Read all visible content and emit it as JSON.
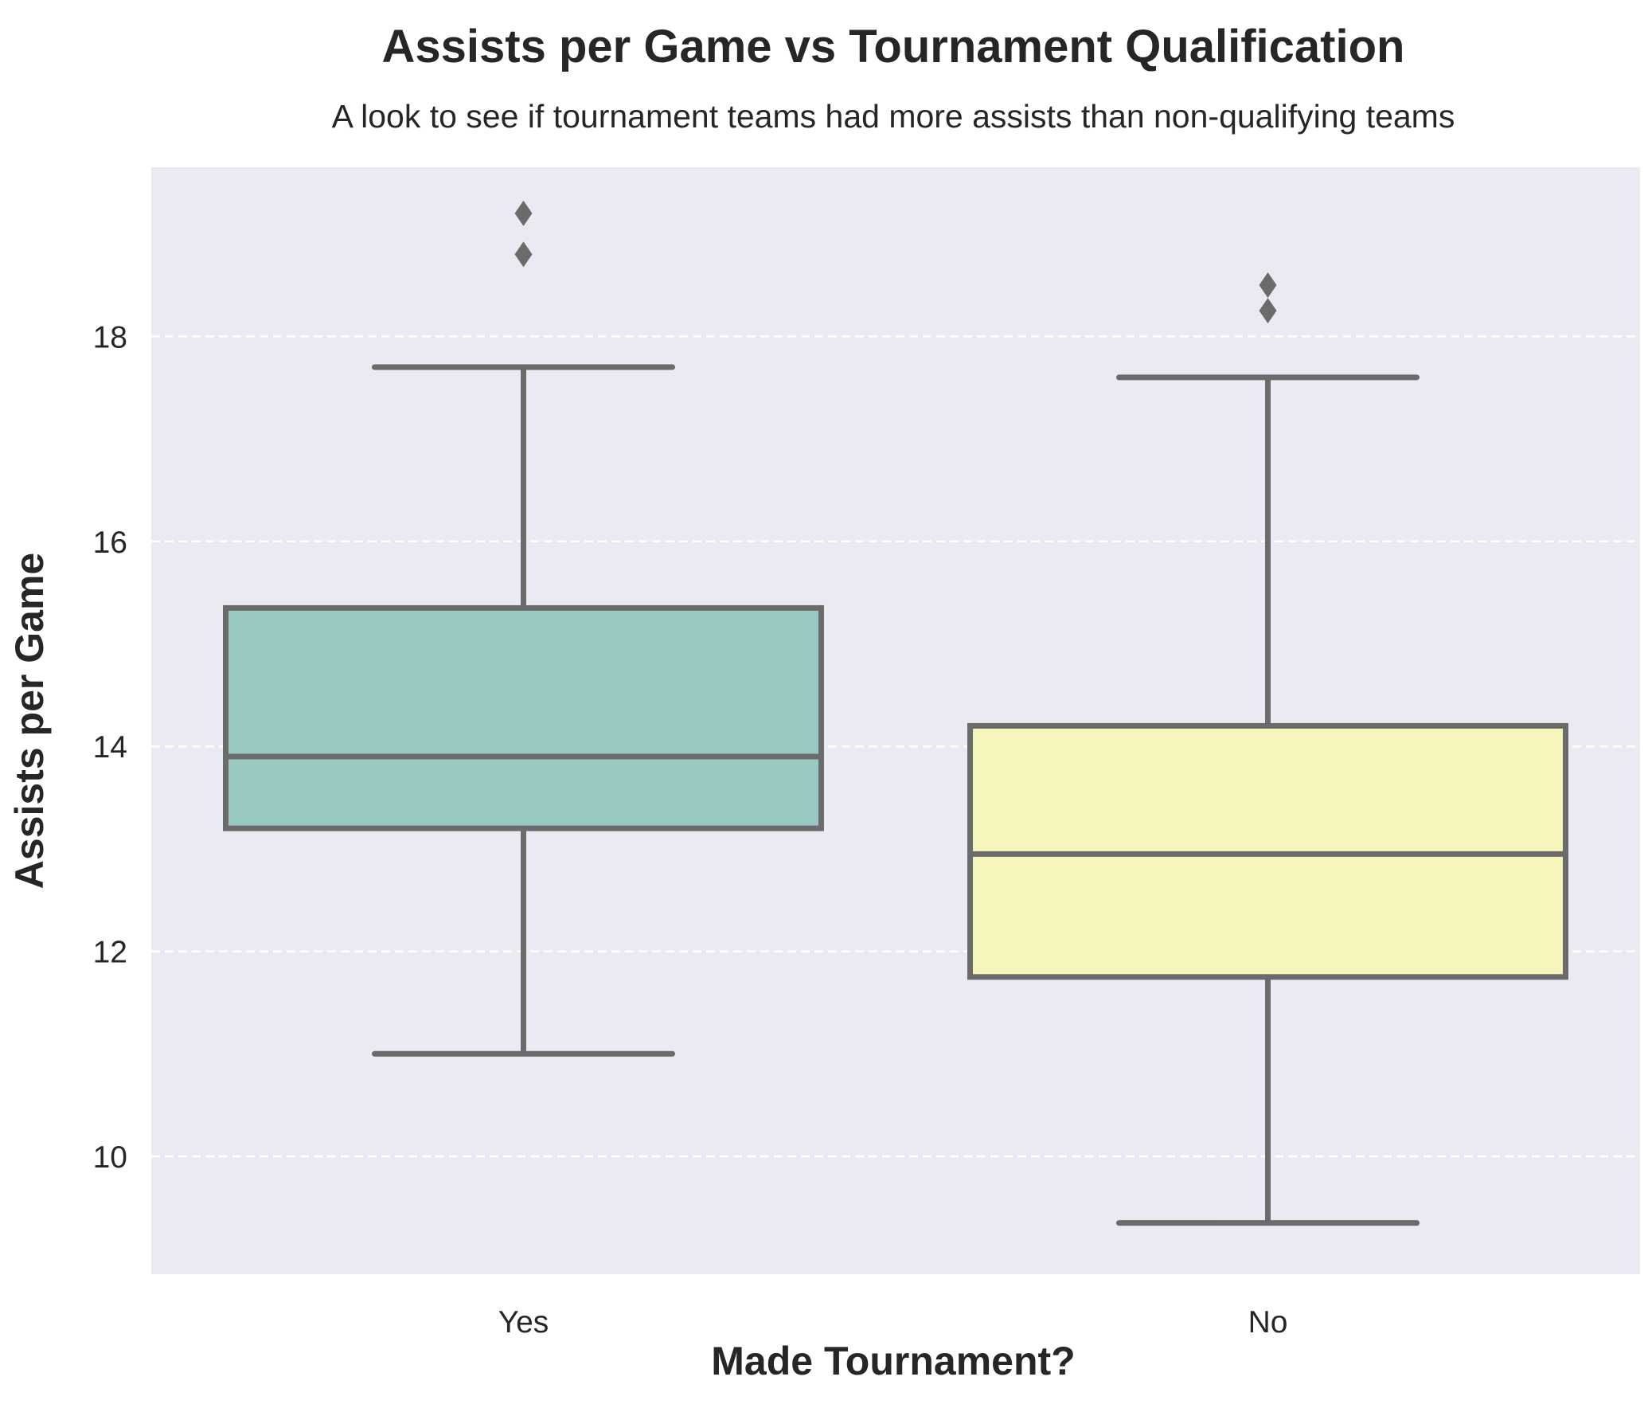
{
  "chart_data": {
    "type": "box",
    "title": "Assists per Game vs Tournament Qualification",
    "subtitle": "A look to see if tournament teams had more assists than non-qualifying teams",
    "xlabel": "Made Tournament?",
    "ylabel": "Assists per Game",
    "categories": [
      "Yes",
      "No"
    ],
    "ylim": [
      8.85,
      19.65
    ],
    "yticks": [
      10,
      12,
      14,
      16,
      18
    ],
    "grid": "y-dashed",
    "boxes": [
      {
        "category": "Yes",
        "whisker_low": 11.0,
        "q1": 13.2,
        "median": 13.9,
        "q3": 15.35,
        "whisker_high": 17.7,
        "outliers": [
          18.8,
          19.2
        ],
        "color": "#99c9c1"
      },
      {
        "category": "No",
        "whisker_low": 9.35,
        "q1": 11.75,
        "median": 12.95,
        "q3": 14.2,
        "whisker_high": 17.6,
        "outliers": [
          18.25,
          18.5
        ],
        "color": "#f6f6bc"
      }
    ],
    "colors": {
      "plot_background": "#eaeaf2",
      "grid": "#ffffff",
      "line": "#6b6b6b",
      "text": "#262626"
    }
  }
}
